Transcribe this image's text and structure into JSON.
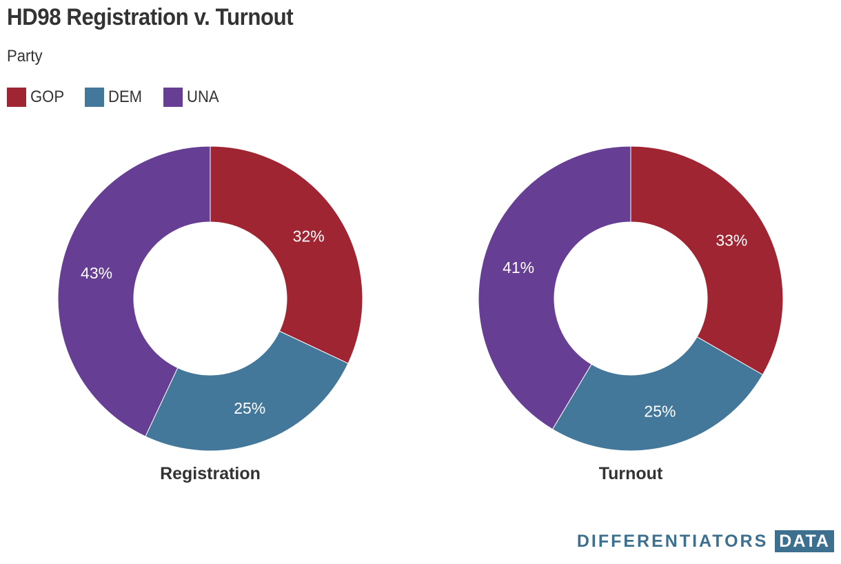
{
  "header": {
    "title": "HD98 Registration v. Turnout",
    "subtitle": "Party"
  },
  "legend": [
    {
      "label": "GOP",
      "color": "#a02533"
    },
    {
      "label": "DEM",
      "color": "#44789a"
    },
    {
      "label": "UNA",
      "color": "#663f95"
    }
  ],
  "chart_data": [
    {
      "type": "pie",
      "title": "Registration",
      "hole": "donut",
      "categories": [
        "GOP",
        "DEM",
        "UNA"
      ],
      "values": [
        32,
        25,
        43
      ],
      "labels": [
        "32%",
        "25%",
        "43%"
      ],
      "colors": [
        "#a02533",
        "#44789a",
        "#663f95"
      ]
    },
    {
      "type": "pie",
      "title": "Turnout",
      "hole": "donut",
      "categories": [
        "GOP",
        "DEM",
        "UNA"
      ],
      "values": [
        33,
        25,
        41
      ],
      "labels": [
        "33%",
        "25%",
        "41%"
      ],
      "colors": [
        "#a02533",
        "#44789a",
        "#663f95"
      ]
    }
  ],
  "footer": {
    "brand_main": "DIFFERENTIATORS",
    "brand_box": "DATA",
    "brand_color": "#3d6f8f"
  }
}
